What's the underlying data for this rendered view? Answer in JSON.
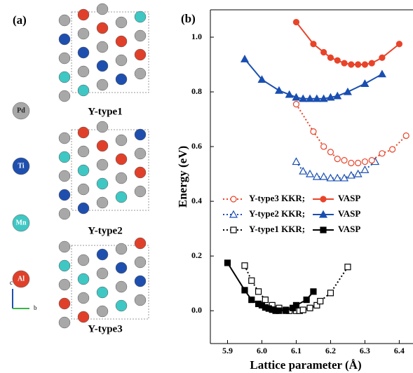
{
  "panel_a": {
    "label": "(a)",
    "elements": [
      "Pd",
      "Ti",
      "Mn",
      "Al"
    ],
    "structures": [
      "Y-type1",
      "Y-type2",
      "Y-type3"
    ],
    "axes": [
      "c",
      "b"
    ]
  },
  "chart_data": {
    "type": "line",
    "panel_label": "(b)",
    "x_label": "Lattice parameter (Å)",
    "y_label": "Energy (eV)",
    "xlim": [
      5.85,
      6.44
    ],
    "ylim": [
      -0.12,
      1.1
    ],
    "xticks": [
      5.9,
      {
        "value": 6,
        "label": "6.0"
      },
      6.1,
      6.2,
      6.3,
      6.4
    ],
    "yticks": [
      {
        "value": 0,
        "label": "0.0"
      },
      0.2,
      0.4,
      0.6,
      0.8,
      {
        "value": 1,
        "label": "1.0"
      }
    ],
    "series": [
      {
        "name": "Y-type1 KKR;",
        "color": "#000000",
        "marker": "square",
        "filled": false,
        "linestyle": "dotted",
        "x": [
          5.95,
          5.97,
          5.99,
          6.01,
          6.03,
          6.05,
          6.07,
          6.08,
          6.1,
          6.11,
          6.12,
          6.14,
          6.16,
          6.17,
          6.2,
          6.25
        ],
        "values": [
          0.165,
          0.11,
          0.07,
          0.04,
          0.02,
          0.01,
          0.003,
          0.0,
          0.0,
          0.0,
          0.003,
          0.01,
          0.02,
          0.035,
          0.065,
          0.16
        ]
      },
      {
        "name": "VASP",
        "color": "#000000",
        "marker": "square",
        "filled": true,
        "linestyle": "solid",
        "x": [
          5.9,
          5.95,
          5.97,
          5.99,
          6.0,
          6.01,
          6.02,
          6.03,
          6.04,
          6.05,
          6.07,
          6.09,
          6.1,
          6.13,
          6.15
        ],
        "values": [
          0.175,
          0.075,
          0.04,
          0.025,
          0.02,
          0.012,
          0.008,
          0.004,
          0.0,
          0.0,
          0.0,
          0.01,
          0.02,
          0.04,
          0.07
        ]
      },
      {
        "name": "Y-type2 KKR;",
        "color": "#1a4fb0",
        "marker": "triangle",
        "filled": false,
        "linestyle": "dotted",
        "x": [
          6.1,
          6.12,
          6.14,
          6.16,
          6.18,
          6.2,
          6.22,
          6.24,
          6.26,
          6.28,
          6.3,
          6.33
        ],
        "values": [
          0.545,
          0.51,
          0.5,
          0.49,
          0.49,
          0.485,
          0.485,
          0.485,
          0.495,
          0.5,
          0.515,
          0.545
        ]
      },
      {
        "name": "VASP",
        "color": "#1a4fb0",
        "marker": "triangle",
        "filled": true,
        "linestyle": "solid",
        "x": [
          5.95,
          6.0,
          6.05,
          6.08,
          6.1,
          6.12,
          6.14,
          6.16,
          6.18,
          6.2,
          6.22,
          6.25,
          6.3,
          6.35
        ],
        "values": [
          0.92,
          0.845,
          0.805,
          0.79,
          0.78,
          0.775,
          0.775,
          0.775,
          0.775,
          0.78,
          0.785,
          0.8,
          0.83,
          0.865
        ]
      },
      {
        "name": "Y-type3 KKR;",
        "color": "#e8442a",
        "marker": "circle",
        "filled": false,
        "linestyle": "dotted",
        "x": [
          6.1,
          6.15,
          6.18,
          6.2,
          6.22,
          6.24,
          6.26,
          6.28,
          6.3,
          6.32,
          6.35,
          6.38,
          6.42
        ],
        "values": [
          0.755,
          0.655,
          0.6,
          0.58,
          0.555,
          0.55,
          0.54,
          0.54,
          0.545,
          0.55,
          0.575,
          0.59,
          0.64
        ]
      },
      {
        "name": "VASP",
        "color": "#e8442a",
        "marker": "circle",
        "filled": true,
        "linestyle": "solid",
        "x": [
          6.1,
          6.15,
          6.18,
          6.2,
          6.22,
          6.24,
          6.26,
          6.28,
          6.3,
          6.32,
          6.35,
          6.4
        ],
        "values": [
          1.055,
          0.975,
          0.945,
          0.925,
          0.915,
          0.905,
          0.9,
          0.9,
          0.9,
          0.905,
          0.925,
          0.975
        ]
      }
    ]
  }
}
